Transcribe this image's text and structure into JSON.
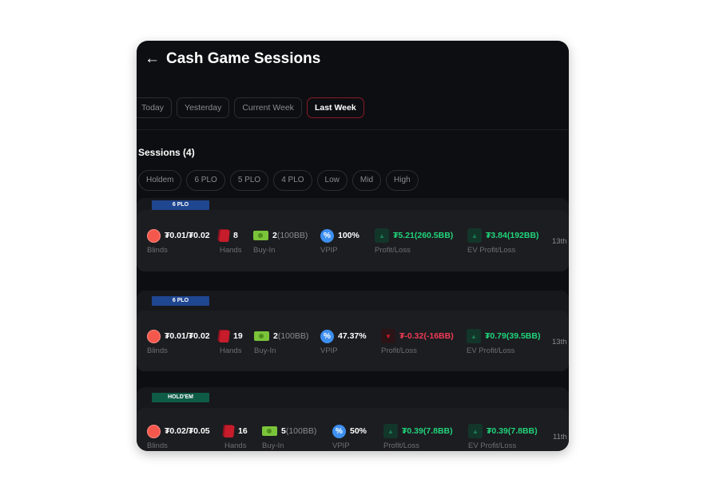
{
  "header": {
    "title": "Cash Game Sessions",
    "back_icon": "arrow-left-icon"
  },
  "date_filters": [
    {
      "label": "Today",
      "active": false
    },
    {
      "label": "Yesterday",
      "active": false
    },
    {
      "label": "Current Week",
      "active": false
    },
    {
      "label": "Last Week",
      "active": true
    }
  ],
  "sessions_title": "Sessions (4)",
  "categories": [
    "Holdem",
    "6 PLO",
    "5 PLO",
    "4 PLO",
    "Low",
    "Mid",
    "High"
  ],
  "labels": {
    "blinds": "Blinds",
    "hands": "Hands",
    "buyin": "Buy-In",
    "vpip": "VPIP",
    "pl": "Profit/Loss",
    "ev": "EV Profit/Loss"
  },
  "colors": {
    "profit": "#20d47a",
    "loss": "#ef3b55",
    "tag_plo": "#1f4690",
    "tag_holdem": "#0f5c45",
    "active_border": "#8a1a28"
  },
  "sessions": [
    {
      "tag": "6 PLO",
      "blinds": "₮0.01/₮0.02",
      "hands": "8",
      "buyin": "2",
      "buyin_bb": "(100BB)",
      "vpip": "100%",
      "pl": "₮5.21",
      "pl_bb": "(260.5BB)",
      "pl_dir": "up",
      "ev": "₮3.84",
      "ev_bb": "(192BB)",
      "ev_dir": "up",
      "date": "13th"
    },
    {
      "tag": "6 PLO",
      "blinds": "₮0.01/₮0.02",
      "hands": "19",
      "buyin": "2",
      "buyin_bb": "(100BB)",
      "vpip": "47.37%",
      "pl": "₮-0.32",
      "pl_bb": "(-16BB)",
      "pl_dir": "down",
      "ev": "₮0.79",
      "ev_bb": "(39.5BB)",
      "ev_dir": "up",
      "date": "13th"
    },
    {
      "tag": "HOLD'EM",
      "blinds": "₮0.02/₮0.05",
      "hands": "16",
      "buyin": "5",
      "buyin_bb": "(100BB)",
      "vpip": "50%",
      "pl": "₮0.39",
      "pl_bb": "(7.8BB)",
      "pl_dir": "up",
      "ev": "₮0.39",
      "ev_bb": "(7.8BB)",
      "ev_dir": "up",
      "date": "11th"
    }
  ]
}
